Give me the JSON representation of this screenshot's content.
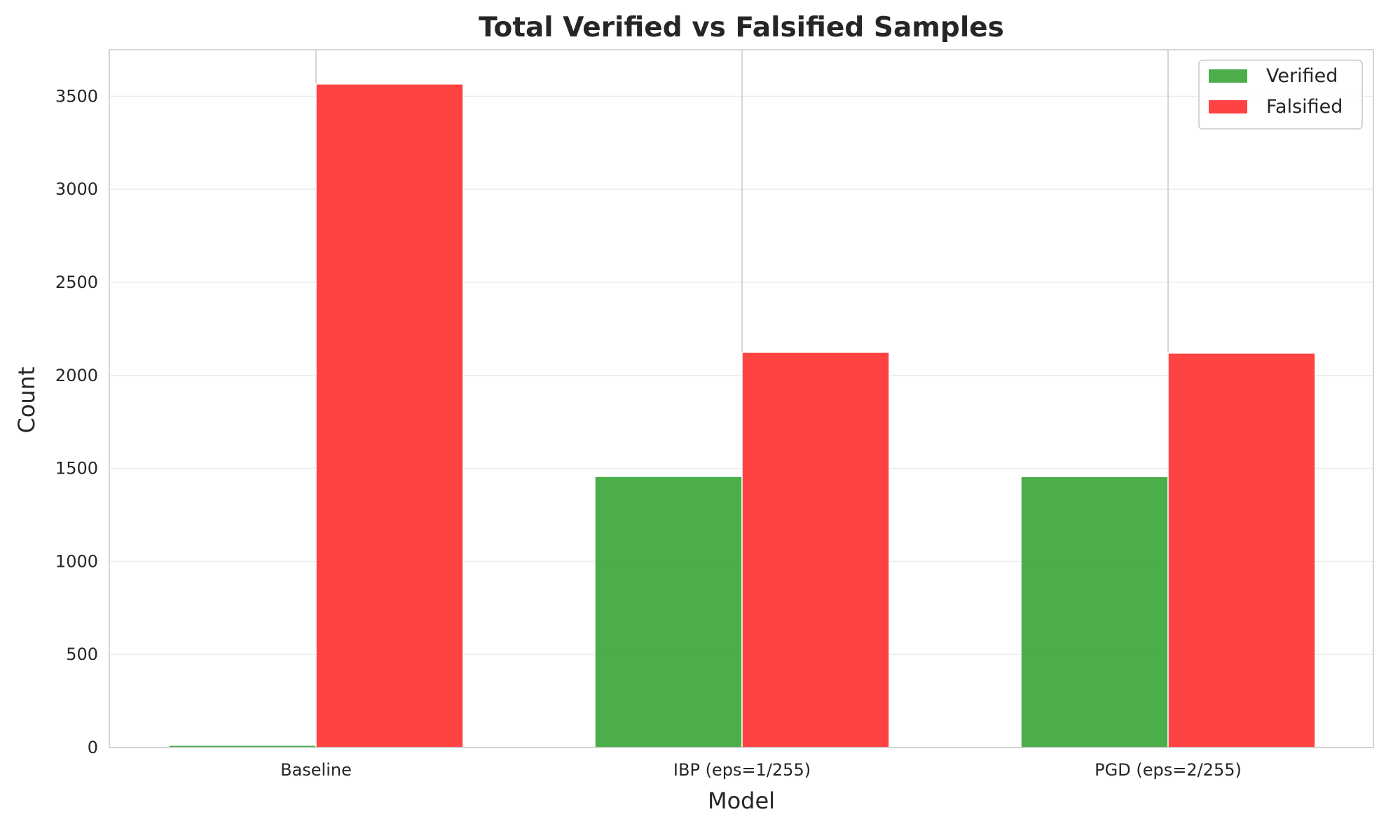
{
  "chart_data": {
    "type": "bar",
    "title": "Total Verified vs Falsified Samples",
    "xlabel": "Model",
    "ylabel": "Count",
    "categories": [
      "Baseline",
      "IBP (eps=1/255)",
      "PGD (eps=2/255)"
    ],
    "series": [
      {
        "name": "Verified",
        "color": "#2ca02c",
        "values": [
          12,
          1457,
          1456
        ]
      },
      {
        "name": "Falsified",
        "color": "#ff2222",
        "values": [
          3566,
          2124,
          2120
        ]
      }
    ],
    "ylim": [
      0,
      3750
    ],
    "yticks": [
      0,
      500,
      1000,
      1500,
      2000,
      2500,
      3000,
      3500
    ],
    "ytick_labels": [
      "0",
      "500",
      "1000",
      "1500",
      "2000",
      "2500",
      "3000",
      "3500"
    ],
    "grid": true,
    "legend_position": "top-right",
    "bar_opacity": 0.85
  }
}
